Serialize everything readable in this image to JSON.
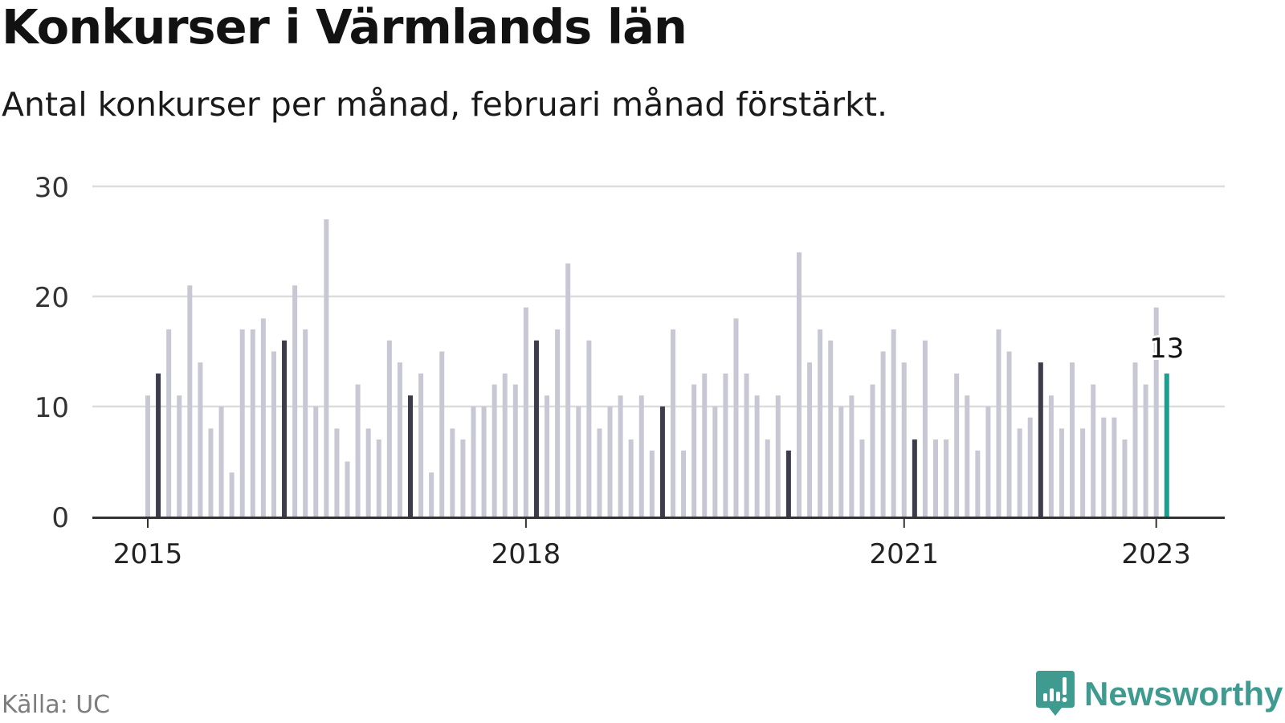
{
  "header": {
    "title": "Konkurser i Värmlands län",
    "subtitle": "Antal konkurser per månad, februari månad förstärkt."
  },
  "footer": {
    "source": "Källa: UC",
    "brand": "Newsworthy"
  },
  "colors": {
    "bar": "#c8c8d4",
    "february": "#3c3c4a",
    "latest": "#1e9e8e",
    "grid": "#dcdcdc",
    "axis": "#333333",
    "brand": "#3f9a8f"
  },
  "icons": {
    "brand": "newsworthy-logo-icon"
  },
  "chart_data": {
    "type": "bar",
    "start": "2015-01",
    "categories": [
      "2015-01",
      "2015-02",
      "2015-03",
      "2015-04",
      "2015-05",
      "2015-06",
      "2015-07",
      "2015-08",
      "2015-09",
      "2015-10",
      "2015-11",
      "2015-12",
      "2016-01",
      "2016-02",
      "2016-03",
      "2016-04",
      "2016-05",
      "2016-06",
      "2016-07",
      "2016-08",
      "2016-09",
      "2016-10",
      "2016-11",
      "2016-12",
      "2017-01",
      "2017-02",
      "2017-03",
      "2017-04",
      "2017-05",
      "2017-06",
      "2017-07",
      "2017-08",
      "2017-09",
      "2017-10",
      "2017-11",
      "2017-12",
      "2018-01",
      "2018-02",
      "2018-03",
      "2018-04",
      "2018-05",
      "2018-06",
      "2018-07",
      "2018-08",
      "2018-09",
      "2018-10",
      "2018-11",
      "2018-12",
      "2019-01",
      "2019-02",
      "2019-03",
      "2019-04",
      "2019-05",
      "2019-06",
      "2019-07",
      "2019-08",
      "2019-09",
      "2019-10",
      "2019-11",
      "2019-12",
      "2020-01",
      "2020-02",
      "2020-03",
      "2020-04",
      "2020-05",
      "2020-06",
      "2020-07",
      "2020-08",
      "2020-09",
      "2020-10",
      "2020-11",
      "2020-12",
      "2021-01",
      "2021-02",
      "2021-03",
      "2021-04",
      "2021-05",
      "2021-06",
      "2021-07",
      "2021-08",
      "2021-09",
      "2021-10",
      "2021-11",
      "2021-12",
      "2022-01",
      "2022-02",
      "2022-03",
      "2022-04",
      "2022-05",
      "2022-06",
      "2022-07",
      "2022-08",
      "2022-09",
      "2022-10",
      "2022-11",
      "2022-12",
      "2023-01",
      "2023-02"
    ],
    "values": [
      11,
      13,
      17,
      11,
      21,
      14,
      8,
      10,
      4,
      17,
      17,
      18,
      15,
      16,
      21,
      17,
      10,
      27,
      8,
      5,
      12,
      8,
      7,
      16,
      14,
      11,
      13,
      4,
      15,
      8,
      7,
      10,
      10,
      12,
      13,
      12,
      19,
      16,
      11,
      17,
      23,
      10,
      16,
      8,
      10,
      11,
      7,
      11,
      6,
      10,
      17,
      6,
      12,
      13,
      10,
      13,
      18,
      13,
      11,
      7,
      11,
      6,
      24,
      14,
      17,
      16,
      10,
      11,
      7,
      12,
      15,
      17,
      14,
      7,
      16,
      7,
      7,
      13,
      11,
      6,
      10,
      17,
      15,
      8,
      9,
      14,
      11,
      8,
      14,
      8,
      12,
      9,
      9,
      7,
      14,
      12,
      19,
      13
    ],
    "highlight_month": "02",
    "latest_label": "13",
    "ylim": [
      0,
      30
    ],
    "yticks": [
      "0",
      "10",
      "20",
      "30"
    ],
    "xticks": [
      {
        "label": "2015",
        "at": "2015-01"
      },
      {
        "label": "2018",
        "at": "2018-01"
      },
      {
        "label": "2021",
        "at": "2021-01"
      },
      {
        "label": "2023",
        "at": "2023-01"
      }
    ],
    "grid": true,
    "xlabel": "",
    "ylabel": ""
  }
}
